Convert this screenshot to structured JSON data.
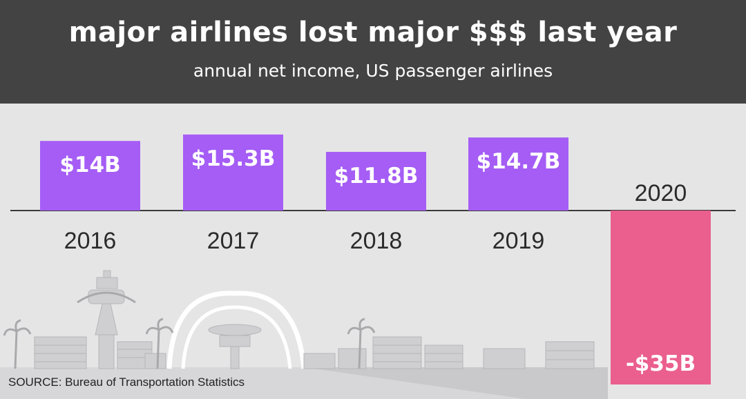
{
  "header": {
    "title": "major airlines lost major $$$ last year",
    "subtitle": "annual net income, US passenger airlines"
  },
  "source": "SOURCE: Bureau of Transportation Statistics",
  "colors": {
    "header_bg": "#444344",
    "background": "#e6e5e6",
    "positive_bar": "#a55df5",
    "negative_bar": "#ea5f8d",
    "skyline": "#cfcfd1"
  },
  "chart_data": {
    "type": "bar",
    "title": "major airlines lost major $$$ last year",
    "subtitle": "annual net income, US passenger airlines",
    "unit": "billion USD",
    "categories": [
      "2016",
      "2017",
      "2018",
      "2019",
      "2020"
    ],
    "values": [
      14,
      15.3,
      11.8,
      14.7,
      -35
    ],
    "labels": [
      "$14B",
      "$15.3B",
      "$11.8B",
      "$14.7B",
      "-$35B"
    ],
    "xlabel": "",
    "ylabel": "",
    "grid": false,
    "legend": "none"
  }
}
